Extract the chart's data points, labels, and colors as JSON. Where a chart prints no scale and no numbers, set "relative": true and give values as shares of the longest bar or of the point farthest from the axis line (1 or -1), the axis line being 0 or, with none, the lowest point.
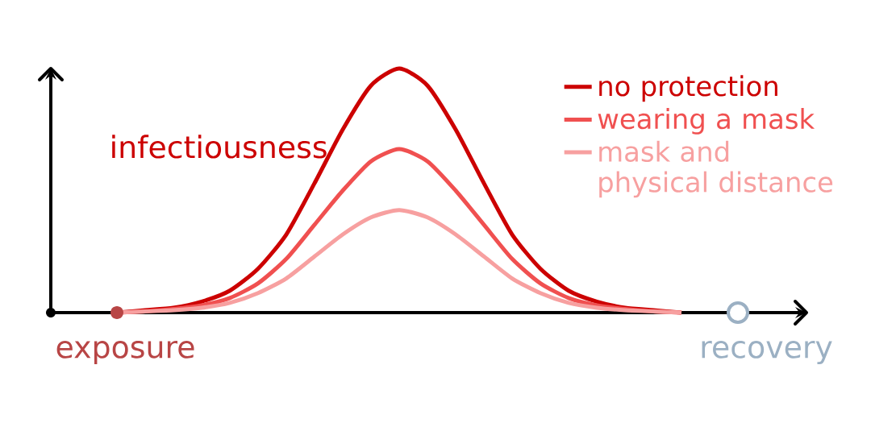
{
  "chart_data": {
    "type": "line",
    "relative": true,
    "ylabel": "infectiousness",
    "legend": "top right",
    "categories": [
      null,
      null,
      null,
      null,
      null,
      null,
      null,
      null,
      null,
      null,
      null,
      null,
      null,
      null,
      null,
      null,
      null,
      null,
      null,
      null,
      null
    ],
    "series": [
      {
        "name": "no protection",
        "color": "#cc0000",
        "values": [
          0,
          0.01,
          0.02,
          0.045,
          0.09,
          0.18,
          0.32,
          0.53,
          0.75,
          0.93,
          1.0,
          0.93,
          0.75,
          0.53,
          0.32,
          0.18,
          0.09,
          0.045,
          0.02,
          0.01,
          0
        ]
      },
      {
        "name": "wearing a mask",
        "color": "#f05050",
        "values": [
          0,
          0.005,
          0.015,
          0.03,
          0.06,
          0.12,
          0.22,
          0.36,
          0.5,
          0.62,
          0.67,
          0.62,
          0.5,
          0.36,
          0.22,
          0.12,
          0.06,
          0.03,
          0.015,
          0.005,
          0
        ]
      },
      {
        "name": "mask and physical distance",
        "color": "#f7a0a0",
        "values": [
          0,
          0.005,
          0.01,
          0.02,
          0.04,
          0.08,
          0.14,
          0.23,
          0.32,
          0.39,
          0.42,
          0.39,
          0.32,
          0.23,
          0.14,
          0.08,
          0.04,
          0.02,
          0.01,
          0.005,
          0
        ]
      }
    ],
    "annotations": [
      "exposure",
      "recovery"
    ]
  }
}
